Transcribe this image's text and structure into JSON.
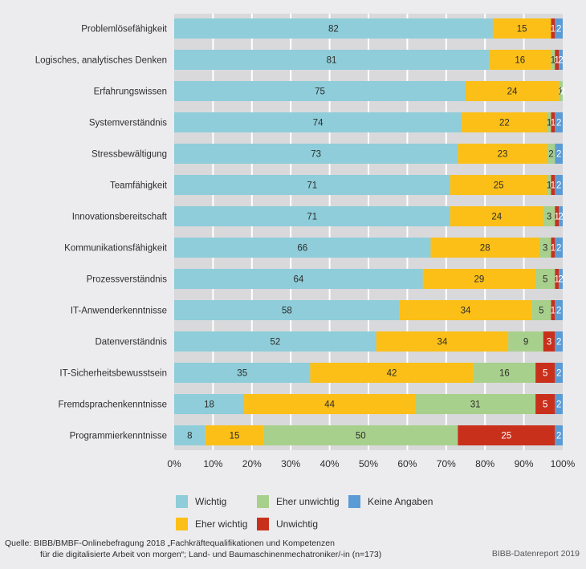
{
  "chart_data": {
    "type": "bar",
    "orientation": "horizontal",
    "stacked": true,
    "title": "",
    "xlabel": "",
    "ylabel": "",
    "xlim": [
      0,
      100
    ],
    "x_ticks": [
      "0%",
      "10%",
      "20%",
      "30%",
      "40%",
      "50%",
      "60%",
      "70%",
      "80%",
      "90%",
      "100%"
    ],
    "grid": true,
    "legend_position": "bottom",
    "categories": [
      "Problemlösefähigkeit",
      "Logisches, analytisches Denken",
      "Erfahrungswissen",
      "Systemverständnis",
      "Stressbewältigung",
      "Teamfähigkeit",
      "Innovationsbereitschaft",
      "Kommunikationsfähigkeit",
      "Prozessverständnis",
      "IT-Anwenderkenntnisse",
      "Datenverständnis",
      "IT-Sicherheitsbewusstsein",
      "Fremdsprachenkenntnisse",
      "Programmierkenntnisse"
    ],
    "series": [
      {
        "name": "Wichtig",
        "color": "#8ecdd9",
        "label_color": "#2d2d2d",
        "values": [
          82,
          81,
          75,
          74,
          73,
          71,
          71,
          66,
          64,
          58,
          52,
          35,
          18,
          8
        ]
      },
      {
        "name": "Eher wichtig",
        "color": "#fbbf17",
        "label_color": "#2d2d2d",
        "values": [
          15,
          16,
          24,
          22,
          23,
          25,
          24,
          28,
          29,
          34,
          34,
          42,
          44,
          15
        ]
      },
      {
        "name": "Eher unwichtig",
        "color": "#a8d08d",
        "label_color": "#2d2d2d",
        "values": [
          0,
          1,
          1,
          1,
          2,
          1,
          3,
          3,
          5,
          5,
          9,
          16,
          31,
          50
        ]
      },
      {
        "name": "Unwichtig",
        "color": "#c9301c",
        "label_color": "#ffffff",
        "values": [
          1,
          1,
          1,
          1,
          0,
          1,
          1,
          1,
          1,
          1,
          3,
          5,
          5,
          25
        ]
      },
      {
        "name": "Keine Angaben",
        "color": "#5b9bd5",
        "label_color": "#ffffff",
        "values": [
          2,
          2,
          2,
          2,
          2,
          2,
          2,
          2,
          2,
          2,
          2,
          2,
          2,
          2
        ]
      }
    ]
  },
  "legend": {
    "items": [
      {
        "label": "Wichtig",
        "color": "#8ecdd9"
      },
      {
        "label": "Eher unwichtig",
        "color": "#a8d08d"
      },
      {
        "label": "Keine Angaben",
        "color": "#5b9bd5"
      },
      {
        "label": "Eher wichtig",
        "color": "#fbbf17"
      },
      {
        "label": "Unwichtig",
        "color": "#c9301c"
      }
    ]
  },
  "footer": {
    "source_line1": "Quelle: BIBB/BMBF-Onlinebefragung 2018 „Fachkräftequalifikationen und Kompetenzen",
    "source_line2": "für die digitalisierte Arbeit von morgen“; Land- und Baumaschinenmechatroniker/-in (n=173)",
    "report": "BIBB-Datenreport 2019"
  }
}
